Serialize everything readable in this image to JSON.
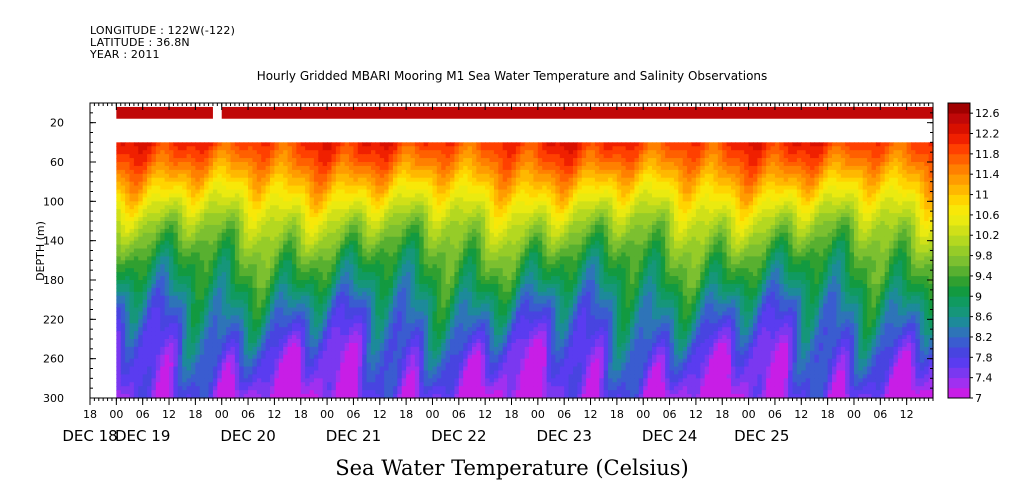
{
  "header": {
    "longitude": "LONGITUDE : 122W(-122)",
    "latitude": "LATITUDE : 36.8N",
    "year": "YEAR : 2011"
  },
  "chart_data": {
    "type": "heatmap",
    "title": "Hourly Gridded MBARI Mooring M1 Sea Water Temperature and Salinity Observations",
    "subtitle": "Sea Water Temperature (Celsius)",
    "ylabel": "DEPTH (m)",
    "xlabel": "",
    "x_axis": {
      "range_hours": [
        -6,
        186
      ],
      "hour_ticks": [
        "18",
        "00",
        "06",
        "12",
        "18",
        "00",
        "06",
        "12",
        "18",
        "00",
        "06",
        "12",
        "18",
        "00",
        "06",
        "12",
        "18",
        "00",
        "06",
        "12",
        "18",
        "00",
        "06",
        "12",
        "18",
        "00",
        "06",
        "12",
        "18",
        "00",
        "06",
        "12"
      ],
      "hour_tick_values": [
        -6,
        0,
        6,
        12,
        18,
        24,
        30,
        36,
        42,
        48,
        54,
        60,
        66,
        72,
        78,
        84,
        90,
        96,
        102,
        108,
        114,
        120,
        126,
        132,
        138,
        144,
        150,
        156,
        162,
        168,
        174,
        180
      ],
      "date_labels": [
        "DEC 18",
        "DEC 19",
        "DEC 20",
        "DEC 21",
        "DEC 22",
        "DEC 23",
        "DEC 24",
        "DEC 25"
      ],
      "date_label_positions_hours": [
        -6,
        6,
        30,
        54,
        78,
        102,
        126,
        147
      ]
    },
    "y_axis": {
      "range": [
        300,
        0
      ],
      "ticks": [
        20,
        60,
        100,
        140,
        180,
        220,
        260,
        300
      ],
      "reversed": true
    },
    "colorbar": {
      "levels": [
        7,
        7.2,
        7.4,
        7.6,
        7.8,
        8,
        8.2,
        8.4,
        8.6,
        8.8,
        9,
        9.2,
        9.4,
        9.6,
        9.8,
        10,
        10.2,
        10.4,
        10.6,
        10.8,
        11,
        11.2,
        11.4,
        11.6,
        11.8,
        12,
        12.2,
        12.4,
        12.6,
        12.8
      ],
      "labels": [
        "12.6",
        "12.2",
        "11.8",
        "11.4",
        "11",
        "10.6",
        "10.2",
        "9.8",
        "9.4",
        "9",
        "8.6",
        "8.2",
        "7.8",
        "7.4",
        "7"
      ],
      "colors": [
        "#c81ee6",
        "#a030f0",
        "#7a38f0",
        "#5a3cf0",
        "#4844e0",
        "#3a5cd0",
        "#2e74b8",
        "#1d8a9a",
        "#16967a",
        "#109a60",
        "#129a40",
        "#30a030",
        "#58b030",
        "#7cc030",
        "#96cc28",
        "#b4d820",
        "#d0e018",
        "#eaea10",
        "#f8e808",
        "#ffd400",
        "#ffb800",
        "#ff9c00",
        "#ff8000",
        "#ff6000",
        "#ff4000",
        "#f02000",
        "#d81000",
        "#c00808",
        "#a00000"
      ]
    },
    "depth_profile_typical": {
      "depth_m": [
        10,
        40,
        60,
        80,
        100,
        120,
        140,
        160,
        180,
        200,
        220,
        240,
        260,
        280,
        300
      ],
      "temperature_c": [
        12.5,
        12.0,
        11.6,
        11.1,
        10.6,
        10.1,
        9.7,
        9.3,
        9.0,
        8.6,
        8.3,
        8.0,
        7.7,
        7.5,
        7.2
      ]
    },
    "surface_band": {
      "depth_m": 10,
      "temperature_c": 12.5,
      "gap_hours": [
        22,
        24
      ]
    },
    "data_start_depth_m": 40,
    "data_start_hour": 0
  }
}
